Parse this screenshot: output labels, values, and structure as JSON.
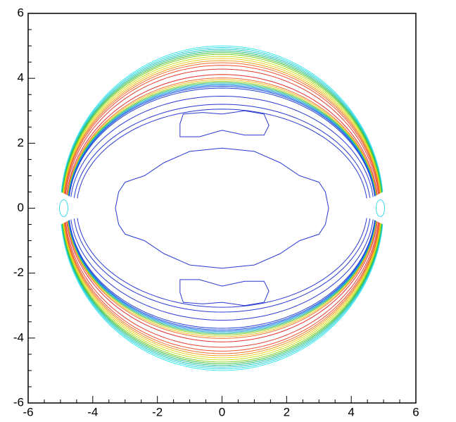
{
  "chart_data": {
    "type": "contour",
    "xlim": [
      -6,
      6
    ],
    "ylim": [
      -6,
      6
    ],
    "xticks": [
      -6,
      -4,
      -2,
      0,
      2,
      4,
      6
    ],
    "yticks": [
      -6,
      -4,
      -2,
      0,
      2,
      4,
      6
    ]
  }
}
